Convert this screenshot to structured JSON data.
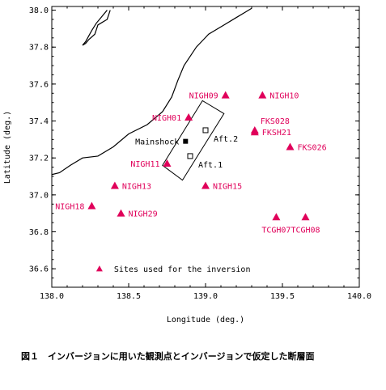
{
  "chart_data": {
    "type": "scatter",
    "xlabel": "Longitude (deg.)",
    "ylabel": "Latitude (deg.)",
    "xlim": [
      138.0,
      140.0
    ],
    "ylim": [
      36.5,
      38.02
    ],
    "xticks": [
      "138.0",
      "138.5",
      "139.0",
      "139.5",
      "140.0"
    ],
    "yticks": [
      "36.6",
      "36.8",
      "37.0",
      "37.2",
      "37.4",
      "37.6",
      "37.8",
      "38.0"
    ],
    "grid": false,
    "sites": [
      {
        "name": "NIGH09",
        "lon": 139.13,
        "lat": 37.54,
        "label_pos": "left"
      },
      {
        "name": "NIGH10",
        "lon": 139.37,
        "lat": 37.54,
        "label_pos": "right"
      },
      {
        "name": "NIGH01",
        "lon": 138.89,
        "lat": 37.42,
        "label_pos": "left"
      },
      {
        "name": "FKS028",
        "lon": 139.32,
        "lat": 37.35,
        "label_pos": "above-right"
      },
      {
        "name": "FKSH21",
        "lon": 139.32,
        "lat": 37.34,
        "label_pos": "right"
      },
      {
        "name": "FKS026",
        "lon": 139.55,
        "lat": 37.26,
        "label_pos": "right"
      },
      {
        "name": "NIGH11",
        "lon": 138.75,
        "lat": 37.17,
        "label_pos": "left"
      },
      {
        "name": "NIGH13",
        "lon": 138.41,
        "lat": 37.05,
        "label_pos": "right"
      },
      {
        "name": "NIGH15",
        "lon": 139.0,
        "lat": 37.05,
        "label_pos": "right"
      },
      {
        "name": "NIGH18",
        "lon": 138.26,
        "lat": 36.94,
        "label_pos": "left"
      },
      {
        "name": "NIGH29",
        "lon": 138.45,
        "lat": 36.9,
        "label_pos": "right"
      },
      {
        "name": "TCGH07",
        "lon": 139.46,
        "lat": 36.88,
        "label_pos": "below"
      },
      {
        "name": "TCGH08",
        "lon": 139.65,
        "lat": 36.88,
        "label_pos": "below"
      }
    ],
    "mainshock": {
      "label": "Mainshock",
      "lon": 138.87,
      "lat": 37.29
    },
    "aftershocks": [
      {
        "label": "Aft.1",
        "lon": 138.9,
        "lat": 37.21
      },
      {
        "label": "Aft.2",
        "lon": 139.0,
        "lat": 37.35
      }
    ],
    "fault_plane": [
      [
        138.72,
        37.16
      ],
      [
        138.85,
        37.08
      ],
      [
        139.12,
        37.44
      ],
      [
        138.98,
        37.51
      ]
    ],
    "coastline": [
      [
        138.0,
        37.11
      ],
      [
        138.05,
        37.12
      ],
      [
        138.12,
        37.16
      ],
      [
        138.2,
        37.2
      ],
      [
        138.3,
        37.21
      ],
      [
        138.4,
        37.26
      ],
      [
        138.5,
        37.33
      ],
      [
        138.62,
        37.38
      ],
      [
        138.72,
        37.45
      ],
      [
        138.78,
        37.53
      ],
      [
        138.82,
        37.62
      ],
      [
        138.86,
        37.7
      ],
      [
        138.94,
        37.8
      ],
      [
        139.02,
        37.87
      ],
      [
        139.12,
        37.92
      ],
      [
        139.2,
        37.96
      ],
      [
        139.26,
        37.99
      ],
      [
        139.3,
        38.01
      ]
    ],
    "island": [
      [
        138.38,
        38.0
      ],
      [
        138.36,
        37.95
      ],
      [
        138.3,
        37.92
      ],
      [
        138.28,
        37.87
      ],
      [
        138.24,
        37.84
      ],
      [
        138.22,
        37.82
      ],
      [
        138.2,
        37.81
      ],
      [
        138.22,
        37.83
      ],
      [
        138.24,
        37.86
      ],
      [
        138.26,
        37.89
      ],
      [
        138.29,
        37.93
      ],
      [
        138.32,
        37.96
      ],
      [
        138.36,
        38.0
      ]
    ],
    "legend": {
      "text": "Sites used for the inversion",
      "lon": 138.31,
      "lat": 36.6
    },
    "colors": {
      "site": "#e0005a",
      "axis": "#000000"
    }
  },
  "caption": "図１　インバージョンに用いた観測点とインバージョンで仮定した断層面"
}
